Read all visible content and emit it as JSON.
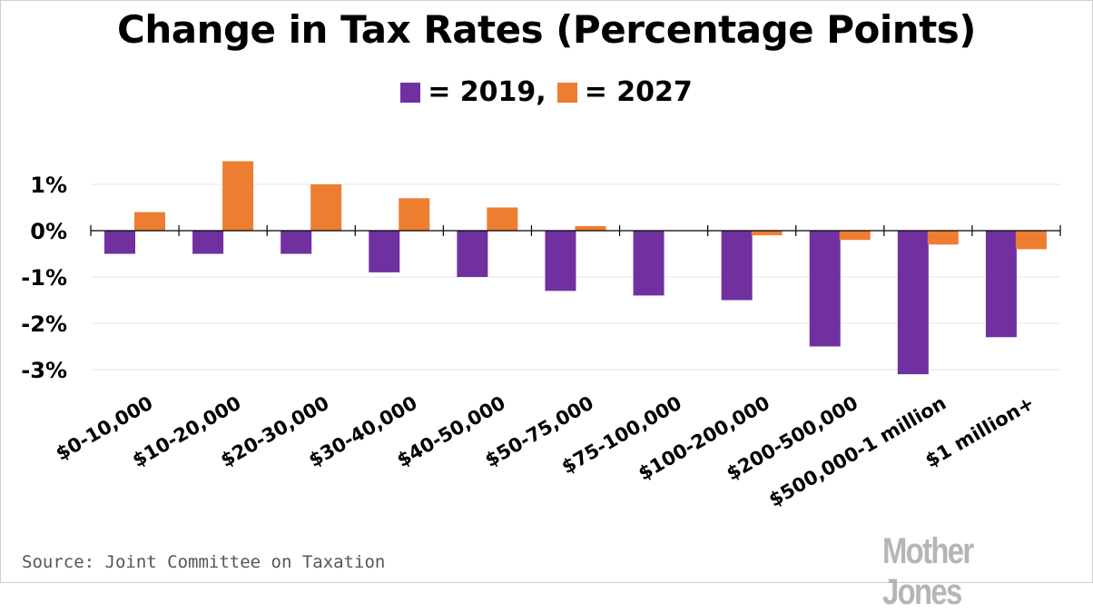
{
  "chart_data": {
    "type": "bar",
    "title": "Change in Tax Rates (Percentage Points)",
    "categories": [
      "$0-10,000",
      "$10-20,000",
      "$20-30,000",
      "$30-40,000",
      "$40-50,000",
      "$50-75,000",
      "$75-100,000",
      "$100-200,000",
      "$200-500,000",
      "$500,000-1 million",
      "$1 million+"
    ],
    "series": [
      {
        "name": "2019",
        "color": "#7030a0",
        "values": [
          -0.5,
          -0.5,
          -0.5,
          -0.9,
          -1.0,
          -1.3,
          -1.4,
          -1.5,
          -2.5,
          -3.1,
          -2.3
        ]
      },
      {
        "name": "2027",
        "color": "#ed7d31",
        "values": [
          0.4,
          1.5,
          1.0,
          0.7,
          0.5,
          0.1,
          0.0,
          -0.1,
          -0.2,
          -0.3,
          -0.4
        ]
      }
    ],
    "ylim": [
      -3.3,
      1.9
    ],
    "yticks": [
      1,
      0,
      -1,
      -2,
      -3
    ],
    "ytick_labels": [
      "1%",
      "0%",
      "-1%",
      "-2%",
      "-3%"
    ],
    "grid": true
  },
  "legend": {
    "item1_label": "= 2019,",
    "item2_label": "= 2027"
  },
  "source": "Source: Joint Committee on Taxation",
  "brand": "Mother Jones"
}
